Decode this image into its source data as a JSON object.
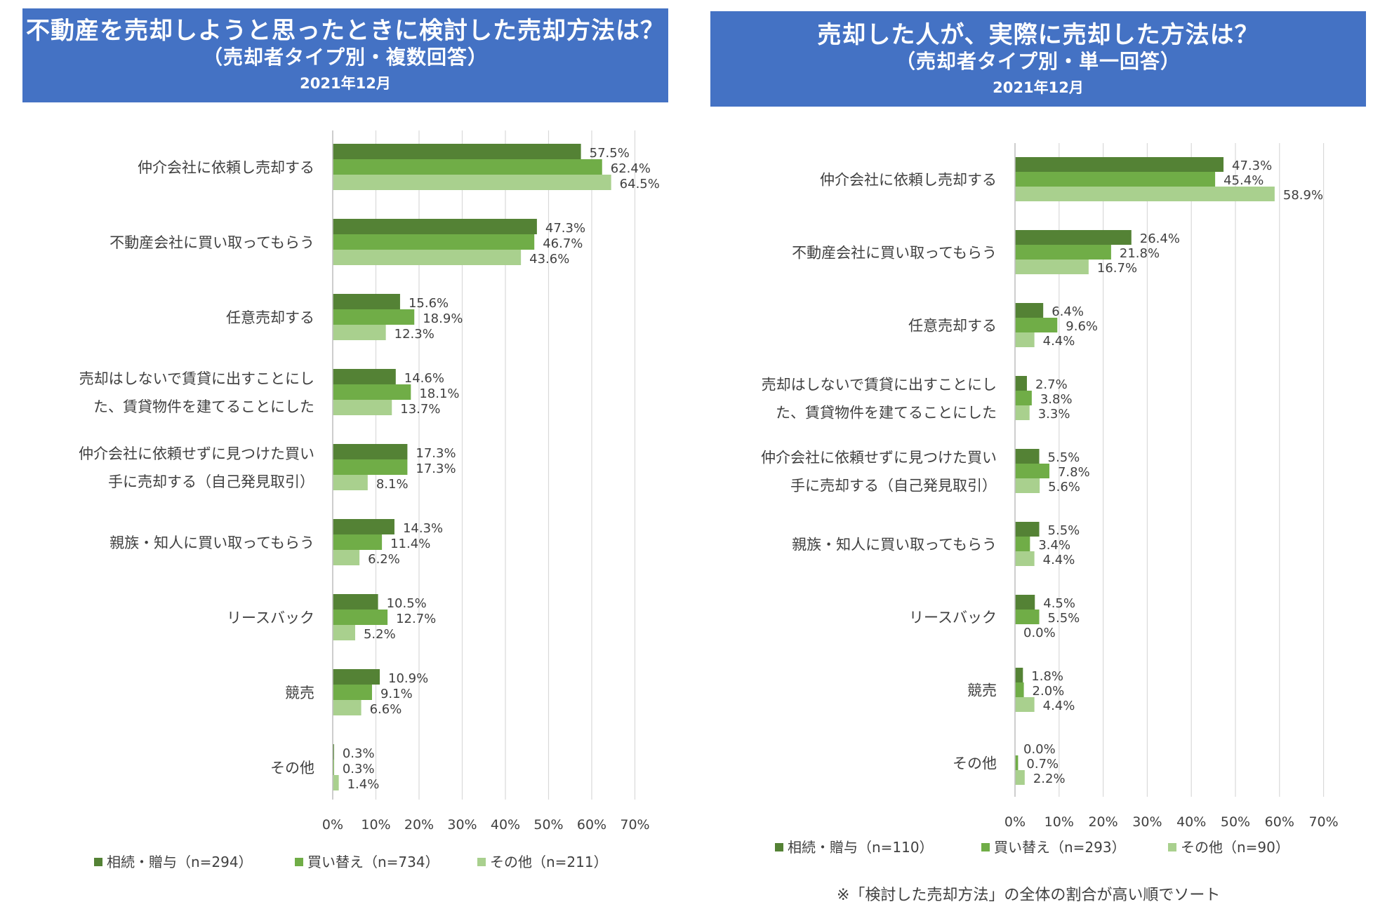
{
  "chart_data": [
    {
      "type": "bar",
      "title": "不動産を売却しようと思ったときに検討した売却方法は？",
      "subtitle": "（売却者タイプ別・複数回答）",
      "date": "2021年12月",
      "categories": [
        [
          "仲介会社に依頼し売却する"
        ],
        [
          "不動産会社に買い取ってもらう"
        ],
        [
          "任意売却する"
        ],
        [
          "売却はしないで賃貸に出すことにし",
          "た、賃貸物件を建てることにした"
        ],
        [
          "仲介会社に依頼せずに見つけた買い",
          "手に売却する（自己発見取引）"
        ],
        [
          "親族・知人に買い取ってもらう"
        ],
        [
          "リースバック"
        ],
        [
          "競売"
        ],
        [
          "その他"
        ]
      ],
      "series": [
        {
          "name": "相続・贈与（n=294）",
          "color": "#548235",
          "values": [
            57.5,
            47.3,
            15.6,
            14.6,
            17.3,
            14.3,
            10.5,
            10.9,
            0.3
          ]
        },
        {
          "name": "買い替え（n=734）",
          "color": "#70ad47",
          "values": [
            62.4,
            46.7,
            18.9,
            18.1,
            17.3,
            11.4,
            12.7,
            9.1,
            0.3
          ]
        },
        {
          "name": "その他（n=211）",
          "color": "#a9d08e",
          "values": [
            64.5,
            43.6,
            12.3,
            13.7,
            8.1,
            6.2,
            5.2,
            6.6,
            1.4
          ]
        }
      ],
      "xlim": [
        0,
        70
      ],
      "xticks": [
        "0%",
        "10%",
        "20%",
        "30%",
        "40%",
        "50%",
        "60%",
        "70%"
      ],
      "grid": true,
      "legend": "bottom"
    },
    {
      "type": "bar",
      "title": "売却した人が、実際に売却した方法は？",
      "subtitle": "（売却者タイプ別・単一回答）",
      "date": "2021年12月",
      "categories": [
        [
          "仲介会社に依頼し売却する"
        ],
        [
          "不動産会社に買い取ってもらう"
        ],
        [
          "任意売却する"
        ],
        [
          "売却はしないで賃貸に出すことにし",
          "た、賃貸物件を建てることにした"
        ],
        [
          "仲介会社に依頼せずに見つけた買い",
          "手に売却する（自己発見取引）"
        ],
        [
          "親族・知人に買い取ってもらう"
        ],
        [
          "リースバック"
        ],
        [
          "競売"
        ],
        [
          "その他"
        ]
      ],
      "series": [
        {
          "name": "相続・贈与（n=110）",
          "color": "#548235",
          "values": [
            47.3,
            26.4,
            6.4,
            2.7,
            5.5,
            5.5,
            4.5,
            1.8,
            0.0
          ]
        },
        {
          "name": "買い替え（n=293）",
          "color": "#70ad47",
          "values": [
            45.4,
            21.8,
            9.6,
            3.8,
            7.8,
            3.4,
            5.5,
            2.0,
            0.7
          ]
        },
        {
          "name": "その他（n=90）",
          "color": "#a9d08e",
          "values": [
            58.9,
            16.7,
            4.4,
            3.3,
            5.6,
            4.4,
            0.0,
            4.4,
            2.2
          ]
        }
      ],
      "xlim": [
        0,
        70
      ],
      "xticks": [
        "0%",
        "10%",
        "20%",
        "30%",
        "40%",
        "50%",
        "60%",
        "70%"
      ],
      "grid": true,
      "legend": "bottom"
    }
  ],
  "footnote": "※「検討した売却方法」の全体の割合が高い順でソート"
}
